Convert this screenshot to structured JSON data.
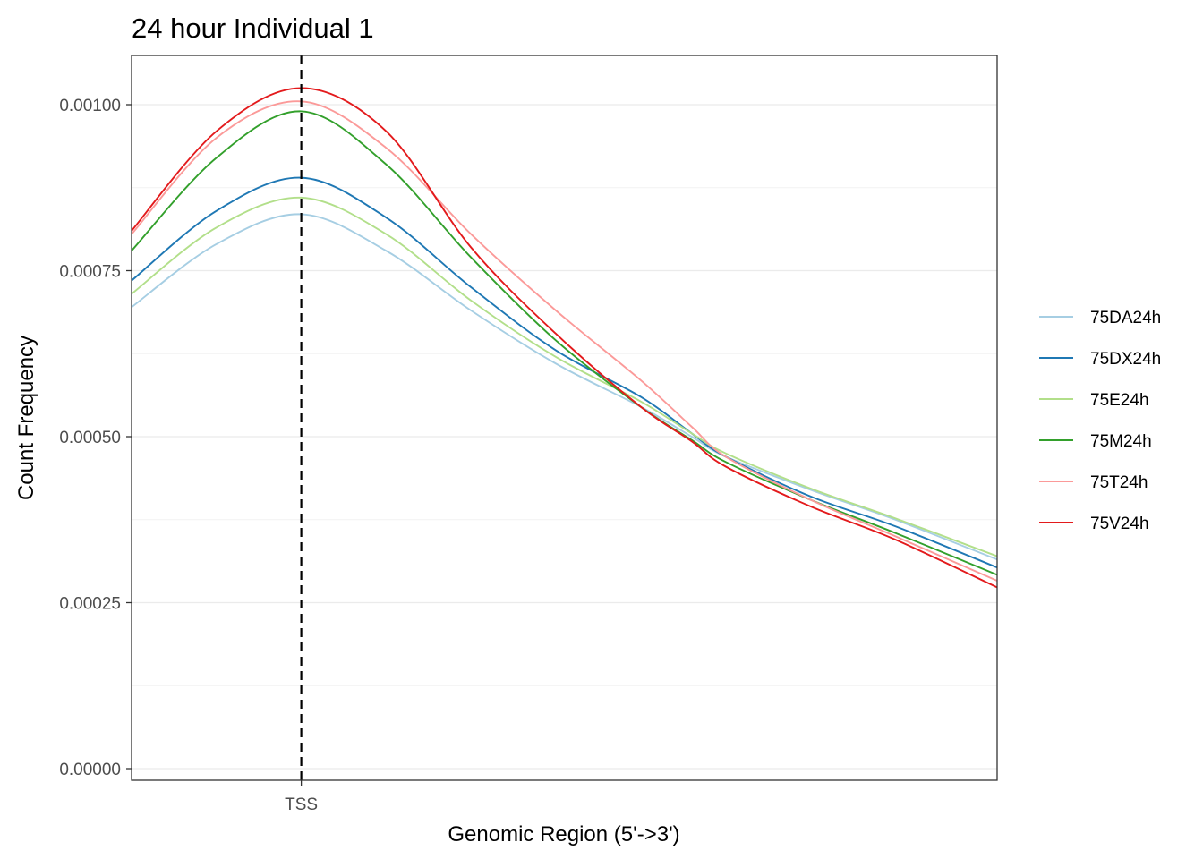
{
  "chart_data": {
    "type": "line",
    "title": "24 hour Individual 1",
    "xlabel": "Genomic Region (5'->3')",
    "ylabel": "Count Frequency",
    "xlim": [
      -1000,
      4100
    ],
    "ylim": [
      0,
      0.001
    ],
    "y_ticks": [
      0.0,
      0.00025,
      0.0005,
      0.00075,
      0.001
    ],
    "y_tick_labels": [
      "0.00000",
      "0.00025",
      "0.00050",
      "0.00075",
      "0.00100"
    ],
    "x_ticks": [
      0
    ],
    "x_tick_labels": [
      "TSS"
    ],
    "vline": {
      "x": 0,
      "style": "dashed",
      "color": "#000000"
    },
    "grid": true,
    "legend_position": "right",
    "x": [
      -1000,
      -500,
      0,
      500,
      1000,
      1500,
      2000,
      2300,
      2500,
      3000,
      3500,
      4100
    ],
    "series": [
      {
        "name": "75DA24h",
        "color": "#a6cee3",
        "values": [
          0.000695,
          0.00079,
          0.000835,
          0.00078,
          0.00069,
          0.00061,
          0.000545,
          0.0005,
          0.00047,
          0.00042,
          0.000375,
          0.000315
        ]
      },
      {
        "name": "75DX24h",
        "color": "#1f78b4",
        "values": [
          0.000735,
          0.00084,
          0.00089,
          0.00083,
          0.000725,
          0.00063,
          0.00056,
          0.000505,
          0.00047,
          0.00041,
          0.000365,
          0.000303
        ]
      },
      {
        "name": "75E24h",
        "color": "#b2df8a",
        "values": [
          0.000715,
          0.000815,
          0.00086,
          0.000805,
          0.000705,
          0.00062,
          0.000553,
          0.000505,
          0.000475,
          0.000422,
          0.000377,
          0.00032
        ]
      },
      {
        "name": "75M24h",
        "color": "#33a02c",
        "values": [
          0.00078,
          0.00092,
          0.00099,
          0.00091,
          0.00077,
          0.000645,
          0.000545,
          0.000495,
          0.000462,
          0.000405,
          0.000355,
          0.000292
        ]
      },
      {
        "name": "75T24h",
        "color": "#fb9a99",
        "values": [
          0.000805,
          0.00095,
          0.001005,
          0.000935,
          0.000805,
          0.00069,
          0.000585,
          0.000515,
          0.00047,
          0.000405,
          0.00035,
          0.000283
        ]
      },
      {
        "name": "75V24h",
        "color": "#e31a1c",
        "values": [
          0.00081,
          0.00096,
          0.001025,
          0.00096,
          0.000785,
          0.000655,
          0.000545,
          0.000493,
          0.000455,
          0.000395,
          0.000345,
          0.000273
        ]
      }
    ]
  }
}
